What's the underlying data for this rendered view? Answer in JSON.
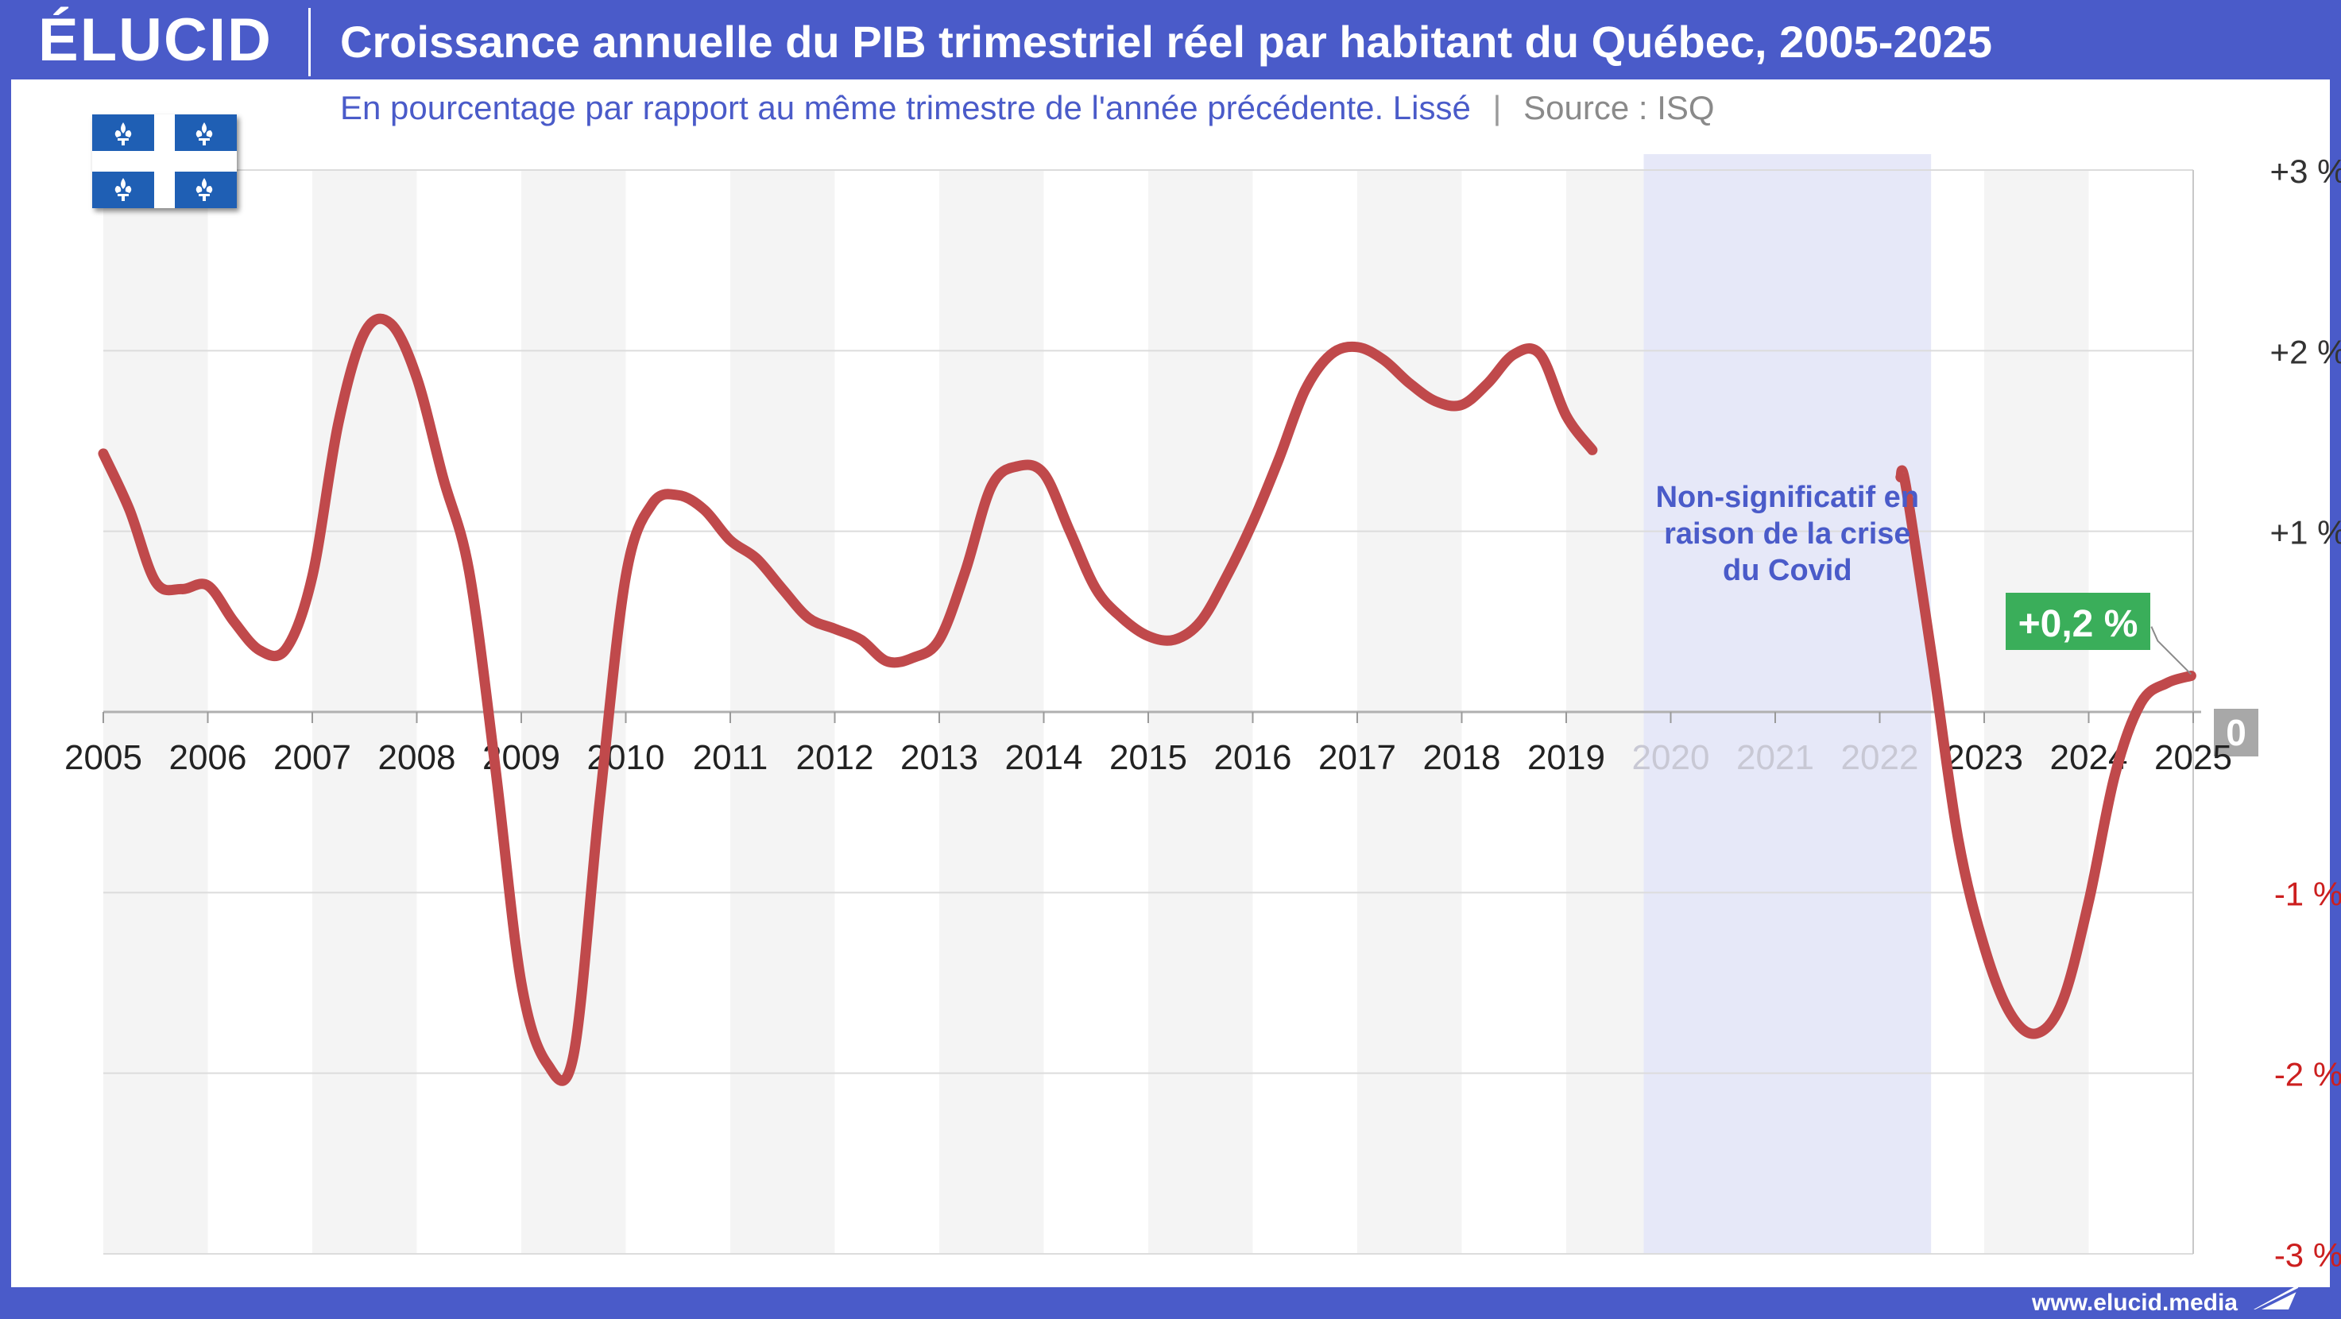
{
  "header": {
    "logo": "ÉLUCID",
    "title": "Croissance annuelle du PIB trimestriel réel par habitant du Québec, 2005-2025"
  },
  "subtitle": {
    "main": "En pourcentage par rapport au même trimestre de l'année précédente. Lissé",
    "separator": "|",
    "source": "Source : ISQ"
  },
  "footer": {
    "url": "www.elucid.media"
  },
  "flag": {
    "name": "quebec-flag-icon",
    "blue": "#1f5fb4",
    "white": "#ffffff"
  },
  "colors": {
    "line": "#c0494b",
    "band": "#f4f4f4",
    "covid_band": "#e6e8f8",
    "grid": "#dcdcdc",
    "positive_tick": "#333333",
    "negative_tick": "#cc1f1f",
    "covid_text": "#4a5bc9",
    "covid_year_text": "#c8c8d4",
    "last_label_bg": "#3aae5a",
    "zero_label_bg": "#a8a8a8",
    "brand": "#4a5bc9"
  },
  "chart_data": {
    "type": "line",
    "title": "Croissance annuelle du PIB trimestriel réel par habitant du Québec, 2005-2025",
    "subtitle": "En pourcentage par rapport au même trimestre de l'année précédente. Lissé",
    "source": "Source : ISQ",
    "x_labels": [
      "2005",
      "2006",
      "2007",
      "2008",
      "2009",
      "2010",
      "2011",
      "2012",
      "2013",
      "2014",
      "2015",
      "2016",
      "2017",
      "2018",
      "2019",
      "2020",
      "2021",
      "2022",
      "2023",
      "2024",
      "2025"
    ],
    "xlim": [
      2005,
      2025
    ],
    "ylim": [
      -3,
      3
    ],
    "y_ticks": [
      {
        "value": 3,
        "label": "+3 %"
      },
      {
        "value": 2,
        "label": "+2 %"
      },
      {
        "value": 1,
        "label": "+1 %"
      },
      {
        "value": 0,
        "label": "0"
      },
      {
        "value": -1,
        "label": "-1 %"
      },
      {
        "value": -2,
        "label": "-2 %"
      },
      {
        "value": -3,
        "label": "-3 %"
      }
    ],
    "y_axis_position": "right",
    "grid": true,
    "alternating_year_bands": true,
    "series": [
      {
        "segments": [
          [
            [
              2005.0,
              1.43
            ],
            [
              2005.25,
              1.12
            ],
            [
              2005.5,
              0.72
            ],
            [
              2005.75,
              0.68
            ],
            [
              2006.0,
              0.7
            ],
            [
              2006.25,
              0.5
            ],
            [
              2006.5,
              0.34
            ],
            [
              2006.75,
              0.35
            ],
            [
              2007.0,
              0.75
            ],
            [
              2007.25,
              1.6
            ],
            [
              2007.5,
              2.1
            ],
            [
              2007.75,
              2.15
            ],
            [
              2008.0,
              1.85
            ],
            [
              2008.25,
              1.3
            ],
            [
              2008.5,
              0.78
            ],
            [
              2008.75,
              -0.3
            ],
            [
              2009.0,
              -1.5
            ],
            [
              2009.25,
              -1.95
            ],
            [
              2009.5,
              -1.9
            ],
            [
              2009.75,
              -0.5
            ],
            [
              2010.0,
              0.75
            ],
            [
              2010.25,
              1.15
            ],
            [
              2010.5,
              1.2
            ],
            [
              2010.75,
              1.12
            ],
            [
              2011.0,
              0.95
            ],
            [
              2011.25,
              0.85
            ],
            [
              2011.5,
              0.68
            ],
            [
              2011.75,
              0.52
            ],
            [
              2012.0,
              0.46
            ],
            [
              2012.25,
              0.4
            ],
            [
              2012.5,
              0.28
            ],
            [
              2012.75,
              0.3
            ],
            [
              2013.0,
              0.4
            ],
            [
              2013.25,
              0.78
            ],
            [
              2013.5,
              1.25
            ],
            [
              2013.75,
              1.36
            ],
            [
              2014.0,
              1.32
            ],
            [
              2014.25,
              1.0
            ],
            [
              2014.5,
              0.68
            ],
            [
              2014.75,
              0.52
            ],
            [
              2015.0,
              0.42
            ],
            [
              2015.25,
              0.4
            ],
            [
              2015.5,
              0.5
            ],
            [
              2015.75,
              0.75
            ],
            [
              2016.0,
              1.05
            ],
            [
              2016.25,
              1.4
            ],
            [
              2016.5,
              1.78
            ],
            [
              2016.75,
              1.98
            ],
            [
              2017.0,
              2.02
            ],
            [
              2017.25,
              1.95
            ],
            [
              2017.5,
              1.82
            ],
            [
              2017.75,
              1.72
            ],
            [
              2018.0,
              1.7
            ],
            [
              2018.25,
              1.82
            ],
            [
              2018.5,
              1.98
            ],
            [
              2018.75,
              1.98
            ],
            [
              2019.0,
              1.64
            ],
            [
              2019.25,
              1.45
            ]
          ],
          [
            [
              2022.2,
              1.3
            ],
            [
              2022.25,
              1.25
            ],
            [
              2022.5,
              0.3
            ],
            [
              2022.75,
              -0.7
            ],
            [
              2023.0,
              -1.3
            ],
            [
              2023.25,
              -1.67
            ],
            [
              2023.5,
              -1.78
            ],
            [
              2023.75,
              -1.6
            ],
            [
              2024.0,
              -1.05
            ],
            [
              2024.25,
              -0.35
            ],
            [
              2024.5,
              0.05
            ],
            [
              2024.75,
              0.16
            ],
            [
              2024.98,
              0.2
            ]
          ]
        ]
      }
    ],
    "shaded_region": {
      "x": [
        2020.0,
        2022.75
      ],
      "label": "Non-significatif en raison de la crise du Covid"
    },
    "annotations": [
      {
        "text": "Non-significatif en raison de la crise du Covid",
        "x": 2021.3,
        "y": 1.15
      },
      {
        "text": "+0,2 %",
        "x": 2024.98,
        "y": 0.2
      }
    ]
  }
}
